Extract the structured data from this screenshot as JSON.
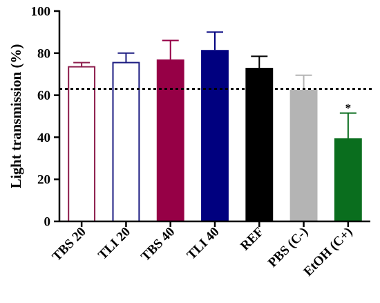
{
  "chart_data": {
    "type": "bar",
    "title": "",
    "xlabel": "",
    "ylabel": "Light transmission (%)",
    "ylim": [
      0,
      100
    ],
    "yticks": [
      0,
      20,
      40,
      60,
      80,
      100
    ],
    "grid": false,
    "categories": [
      "TBS 20",
      "TLI 20",
      "TBS 40",
      "TLI 40",
      "REF",
      "PBS (C-)",
      "EtOH (C+)"
    ],
    "values": [
      73.5,
      75.5,
      77,
      81.5,
      73,
      62.5,
      39.5
    ],
    "error_upper": [
      75.5,
      80,
      86,
      90,
      78.5,
      69.5,
      51.5
    ],
    "styles": [
      {
        "fill": "#ffffff",
        "stroke": "#8b1a4a"
      },
      {
        "fill": "#ffffff",
        "stroke": "#1a1a80"
      },
      {
        "fill": "#960046",
        "stroke": "#960046"
      },
      {
        "fill": "#00007f",
        "stroke": "#00007f"
      },
      {
        "fill": "#000000",
        "stroke": "#000000"
      },
      {
        "fill": "#b4b4b4",
        "stroke": "#b4b4b4"
      },
      {
        "fill": "#0a6e1e",
        "stroke": "#0a6e1e"
      }
    ],
    "reference_line": {
      "y": 63,
      "style": "dotted",
      "color": "#000000"
    },
    "annotations": [
      {
        "category": "EtOH (C+)",
        "text": "*"
      }
    ]
  }
}
